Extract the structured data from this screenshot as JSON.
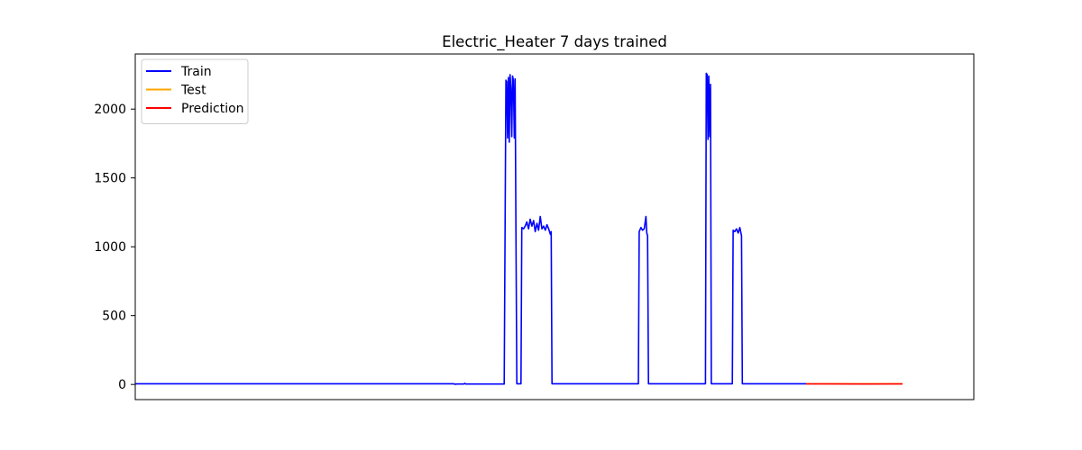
{
  "chart_data": {
    "type": "line",
    "title": "Electric_Heater 7 days trained",
    "xlabel": "",
    "ylabel": "",
    "x_ticks_visible": false,
    "xlim": [
      0,
      1000
    ],
    "ylim": [
      -110,
      2400
    ],
    "y_ticks": [
      0,
      500,
      1000,
      1500,
      2000
    ],
    "y_tick_labels": [
      "0",
      "500",
      "1000",
      "1500",
      "2000"
    ],
    "grid": false,
    "legend_position": "top-left",
    "series": [
      {
        "name": "Train",
        "color": "#0000ff",
        "points": [
          [
            0,
            5
          ],
          [
            380,
            5
          ],
          [
            381,
            2
          ],
          [
            384,
            3
          ],
          [
            392,
            3
          ],
          [
            393,
            8
          ],
          [
            394,
            3
          ],
          [
            420,
            3
          ],
          [
            440,
            3
          ],
          [
            442,
            2210
          ],
          [
            443,
            2200
          ],
          [
            444,
            1790
          ],
          [
            445,
            2230
          ],
          [
            446,
            1760
          ],
          [
            447,
            2250
          ],
          [
            448,
            2150
          ],
          [
            449,
            1800
          ],
          [
            450,
            2240
          ],
          [
            451,
            2210
          ],
          [
            452,
            1790
          ],
          [
            453,
            2220
          ],
          [
            454,
            1120
          ],
          [
            455,
            5
          ],
          [
            460,
            5
          ],
          [
            461,
            1140
          ],
          [
            463,
            1130
          ],
          [
            465,
            1150
          ],
          [
            467,
            1180
          ],
          [
            469,
            1130
          ],
          [
            471,
            1200
          ],
          [
            473,
            1150
          ],
          [
            475,
            1190
          ],
          [
            477,
            1110
          ],
          [
            479,
            1170
          ],
          [
            481,
            1120
          ],
          [
            483,
            1220
          ],
          [
            485,
            1130
          ],
          [
            487,
            1150
          ],
          [
            489,
            1120
          ],
          [
            491,
            1160
          ],
          [
            493,
            1130
          ],
          [
            495,
            1090
          ],
          [
            496,
            1110
          ],
          [
            497,
            5
          ],
          [
            600,
            5
          ],
          [
            601,
            1110
          ],
          [
            603,
            1140
          ],
          [
            605,
            1120
          ],
          [
            607,
            1130
          ],
          [
            609,
            1220
          ],
          [
            610,
            1100
          ],
          [
            611,
            1080
          ],
          [
            612,
            5
          ],
          [
            680,
            5
          ],
          [
            681,
            2260
          ],
          [
            682,
            2250
          ],
          [
            683,
            1780
          ],
          [
            684,
            2240
          ],
          [
            685,
            1800
          ],
          [
            686,
            2180
          ],
          [
            687,
            5
          ],
          [
            712,
            5
          ],
          [
            713,
            1120
          ],
          [
            715,
            1110
          ],
          [
            717,
            1130
          ],
          [
            719,
            1100
          ],
          [
            721,
            1140
          ],
          [
            723,
            1080
          ],
          [
            724,
            5
          ],
          [
            800,
            5
          ]
        ]
      },
      {
        "name": "Test",
        "color": "#ffa500",
        "points": [
          [
            800,
            5
          ],
          [
            915,
            5
          ]
        ]
      },
      {
        "name": "Prediction",
        "color": "#ff0000",
        "points": [
          [
            800,
            4
          ],
          [
            830,
            4
          ],
          [
            870,
            3
          ],
          [
            915,
            4
          ]
        ]
      }
    ]
  }
}
